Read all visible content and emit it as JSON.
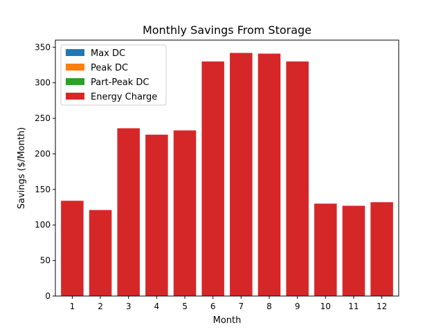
{
  "chart_data": {
    "type": "bar",
    "title": "Monthly Savings From Storage",
    "xlabel": "Month",
    "ylabel": "Savings ($/Month)",
    "categories": [
      "1",
      "2",
      "3",
      "4",
      "5",
      "6",
      "7",
      "8",
      "9",
      "10",
      "11",
      "12"
    ],
    "ylim": [
      0,
      360
    ],
    "yticks": [
      0,
      50,
      100,
      150,
      200,
      250,
      300,
      350
    ],
    "stacked": true,
    "grid": false,
    "legend_position": "top-left",
    "series": [
      {
        "name": "Max DC",
        "color": "#1f77b4",
        "values": [
          0,
          0,
          0,
          0,
          0,
          0,
          0,
          0,
          0,
          0,
          0,
          0
        ]
      },
      {
        "name": "Peak DC",
        "color": "#ff7f0e",
        "values": [
          0,
          0,
          0,
          0,
          0,
          0,
          0,
          0,
          0,
          0,
          0,
          0
        ]
      },
      {
        "name": "Part-Peak DC",
        "color": "#2ca02c",
        "values": [
          0,
          0,
          0,
          0,
          0,
          0,
          0,
          0,
          0,
          0,
          0,
          0
        ]
      },
      {
        "name": "Energy Charge",
        "color": "#d62728",
        "values": [
          134,
          121,
          236,
          227,
          233,
          330,
          342,
          341,
          330,
          130,
          127,
          132
        ]
      }
    ]
  }
}
